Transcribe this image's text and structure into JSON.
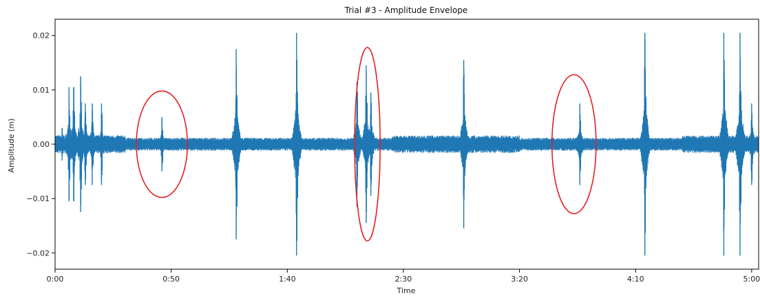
{
  "chart_data": {
    "type": "line",
    "title": "Trial #3 - Amplitude Envelope",
    "xlabel": "Time",
    "ylabel": "Amplitude (m)",
    "xlim": [
      0,
      303
    ],
    "ylim": [
      -0.023,
      0.023
    ],
    "x_ticks": [
      {
        "value": 0,
        "label": "0:00"
      },
      {
        "value": 50,
        "label": "0:50"
      },
      {
        "value": 100,
        "label": "1:40"
      },
      {
        "value": 150,
        "label": "2:30"
      },
      {
        "value": 200,
        "label": "3:20"
      },
      {
        "value": 250,
        "label": "4:10"
      },
      {
        "value": 300,
        "label": "5:00"
      }
    ],
    "y_ticks": [
      {
        "value": 0.02,
        "label": "0.02"
      },
      {
        "value": 0.01,
        "label": "0.01"
      },
      {
        "value": 0.0,
        "label": "0.00"
      },
      {
        "value": -0.01,
        "label": "−0.01"
      },
      {
        "value": -0.02,
        "label": "−0.02"
      }
    ],
    "grid": false,
    "series": [
      {
        "color": "#1f77b4",
        "baseline_amplitude": 0.0012,
        "envelope_peaks": [
          {
            "t": 3,
            "amp": 0.003
          },
          {
            "t": 6,
            "amp": 0.0105
          },
          {
            "t": 8,
            "amp": 0.0105
          },
          {
            "t": 11,
            "amp": 0.0125
          },
          {
            "t": 13,
            "amp": 0.0075
          },
          {
            "t": 16,
            "amp": 0.0075
          },
          {
            "t": 20,
            "amp": 0.0075
          },
          {
            "t": 46,
            "amp": 0.005
          },
          {
            "t": 78,
            "amp": 0.0175
          },
          {
            "t": 104,
            "amp": 0.0205
          },
          {
            "t": 130,
            "amp": 0.0115
          },
          {
            "t": 134,
            "amp": 0.0145
          },
          {
            "t": 136,
            "amp": 0.0095
          },
          {
            "t": 176,
            "amp": 0.0155
          },
          {
            "t": 226,
            "amp": 0.0075
          },
          {
            "t": 254,
            "amp": 0.0205
          },
          {
            "t": 288,
            "amp": 0.0205
          },
          {
            "t": 295,
            "amp": 0.0205
          },
          {
            "t": 300,
            "amp": 0.0075
          }
        ]
      }
    ],
    "annotations": [
      {
        "shape": "ellipse",
        "color": "#e32020",
        "x_range": [
          35,
          57
        ],
        "y_range": [
          -0.0098,
          0.0098
        ]
      },
      {
        "shape": "ellipse",
        "color": "#e32020",
        "x_range": [
          129,
          140
        ],
        "y_range": [
          -0.0178,
          0.0178
        ]
      },
      {
        "shape": "ellipse",
        "color": "#e32020",
        "x_range": [
          214,
          233
        ],
        "y_range": [
          -0.0128,
          0.0128
        ]
      }
    ]
  }
}
